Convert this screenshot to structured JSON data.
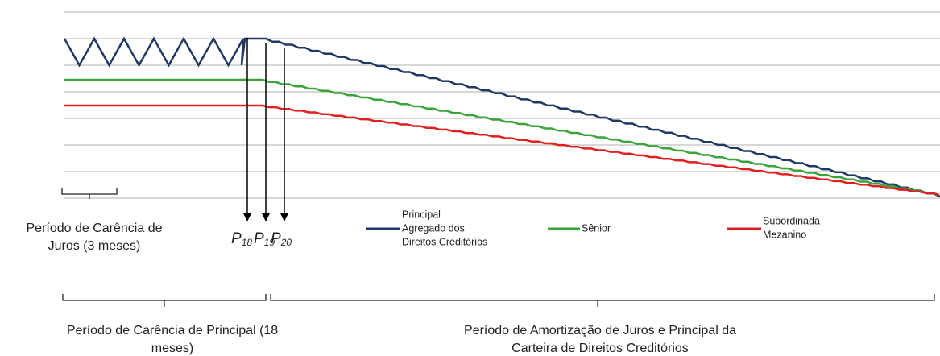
{
  "interest_grace": {
    "lines": [
      "Período de Carência de",
      "Juros (3 meses)"
    ]
  },
  "markers": [
    {
      "letter": "P",
      "sub": "18"
    },
    {
      "letter": "P",
      "sub": "19"
    },
    {
      "letter": "P",
      "sub": "20"
    }
  ],
  "legend": [
    {
      "lines": [
        "Principal",
        "Agregado dos",
        "Direitos Creditórios"
      ],
      "color": "#1f3864"
    },
    {
      "lines": [
        "Sênior"
      ],
      "color": "#3aa33a"
    },
    {
      "lines": [
        "Subordinada",
        "Mezanino"
      ],
      "color": "#e02020"
    }
  ],
  "principal_grace": {
    "lines": [
      "Período de Carência de Principal (18",
      "meses)"
    ]
  },
  "amortization": {
    "lines": [
      "Período de Amortização de Juros e Principal da",
      "Carteira de Direitos Creditórios"
    ]
  }
}
